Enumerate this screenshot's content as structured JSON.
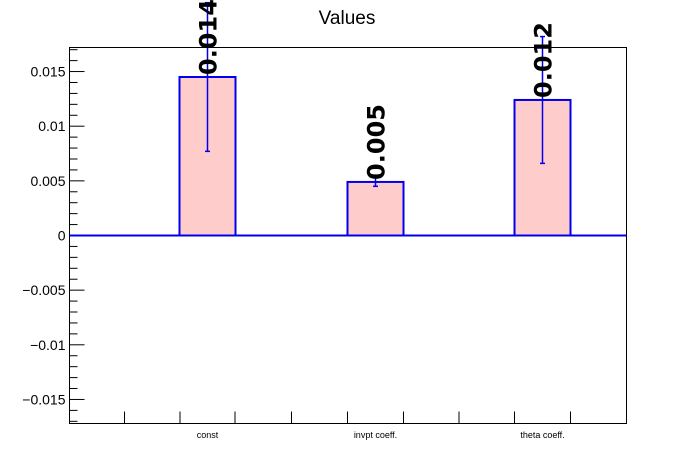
{
  "chart_data": {
    "type": "bar",
    "title": "Values",
    "xlabel": "",
    "ylabel": "",
    "categories": [
      "const",
      "invpt coeff.",
      "theta coeff."
    ],
    "values": [
      0.0145,
      0.0049,
      0.0124
    ],
    "errors": [
      0.0068,
      0.0004,
      0.0058
    ],
    "data_labels": [
      "0.014",
      "0.005",
      "0.012"
    ],
    "ylim": [
      -0.0172,
      0.0172
    ],
    "yticks": [
      -0.015,
      -0.01,
      -0.005,
      0,
      0.005,
      0.01,
      0.015
    ],
    "ytick_labels": [
      "−0.015",
      "−0.01",
      "−0.005",
      "0",
      "0.005",
      "0.01",
      "0.015"
    ],
    "grid": false,
    "colors": {
      "bar_fill": "#ffcccc",
      "bar_stroke": "#0000ee",
      "error": "#0000ee",
      "zero_line": "#0000ee",
      "frame": "#000000"
    }
  }
}
